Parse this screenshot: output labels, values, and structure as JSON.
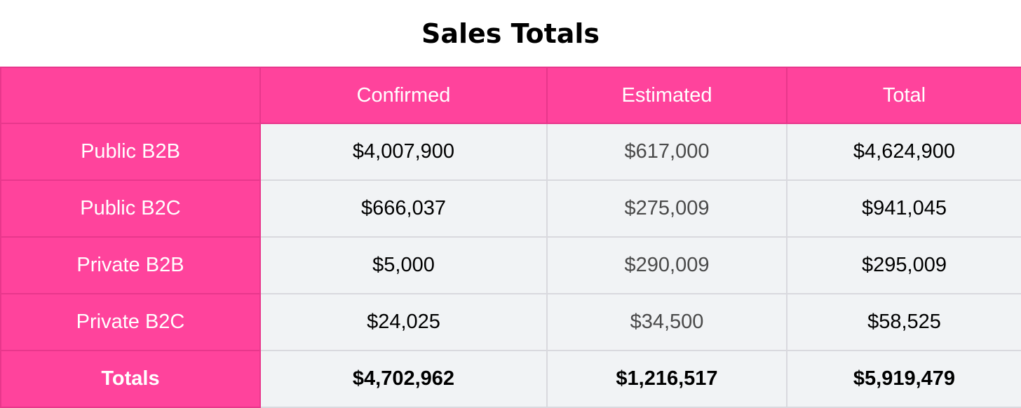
{
  "chart_data": {
    "type": "table",
    "title": "Sales Totals",
    "columns": [
      "",
      "Confirmed",
      "Estimated",
      "Total"
    ],
    "rows": [
      {
        "label": "Public B2B",
        "values": [
          "$4,007,900",
          "$617,000",
          "$4,624,900"
        ]
      },
      {
        "label": "Public B2C",
        "values": [
          "$666,037",
          "$275,009",
          "$941,045"
        ]
      },
      {
        "label": "Private B2B",
        "values": [
          "$5,000",
          "$290,009",
          "$295,009"
        ]
      },
      {
        "label": "Private B2C",
        "values": [
          "$24,025",
          "$34,500",
          "$58,525"
        ]
      }
    ],
    "totals": {
      "label": "Totals",
      "values": [
        "$4,702,962",
        "$1,216,517",
        "$5,919,479"
      ]
    },
    "colors": {
      "header_bg": "#ff439c",
      "header_text": "#ffffff",
      "cell_bg": "#f1f3f5",
      "grid": "#d9d9de"
    }
  }
}
